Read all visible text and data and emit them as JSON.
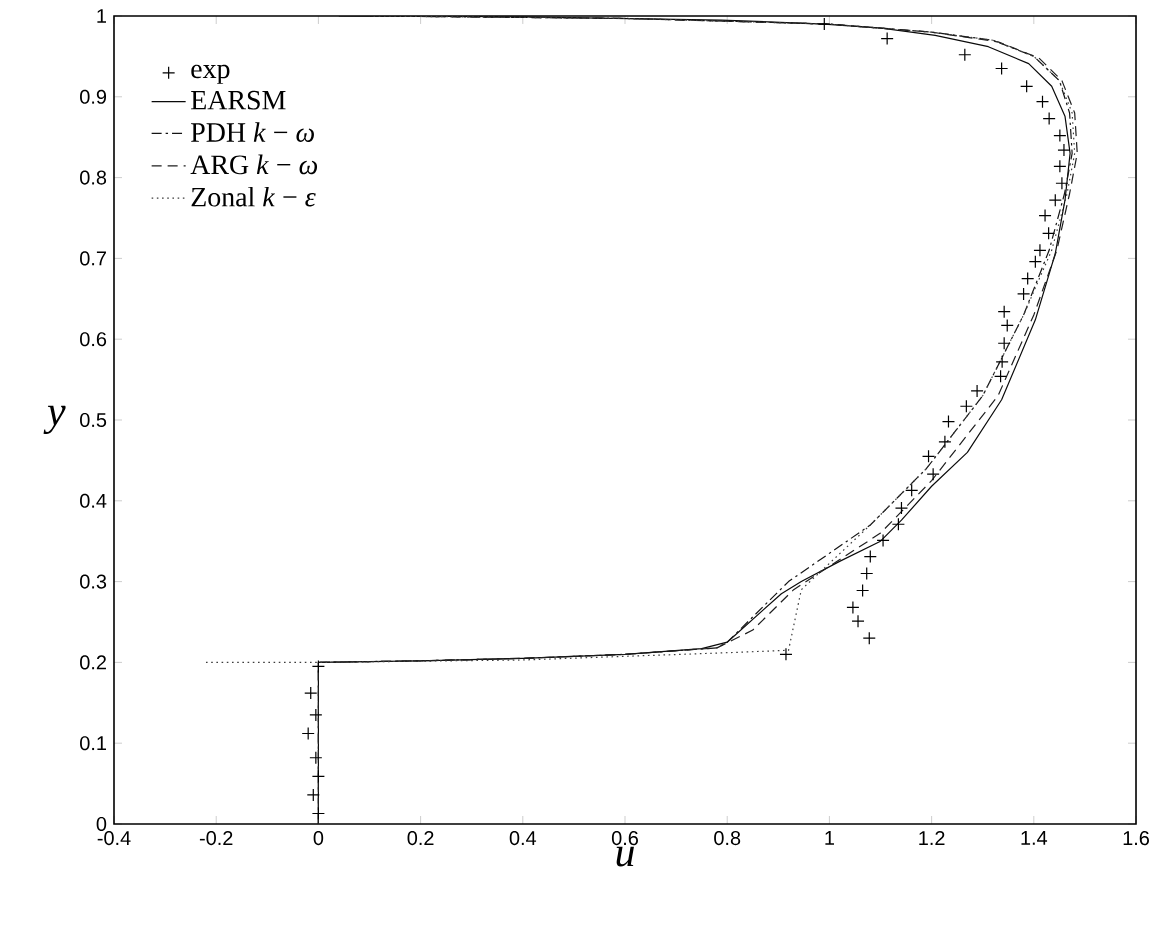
{
  "chart_data": {
    "type": "line",
    "xlabel": "u",
    "ylabel": "y",
    "xlim": [
      -0.4,
      1.6
    ],
    "ylim": [
      0,
      1
    ],
    "xticks": [
      -0.4,
      -0.2,
      0,
      0.2,
      0.4,
      0.6,
      0.8,
      1,
      1.2,
      1.4,
      1.6
    ],
    "yticks": [
      0,
      0.1,
      0.2,
      0.3,
      0.4,
      0.5,
      0.6,
      0.7,
      0.8,
      0.9,
      1
    ],
    "grid": false,
    "legend": "top left",
    "series": [
      {
        "name": "exp",
        "type": "scatter",
        "marker": "cross",
        "color": "#000000",
        "x": [
          0,
          -0.01,
          0,
          -0.005,
          -0.02,
          -0.005,
          -0.015,
          0,
          0.915,
          1.078,
          1.056,
          1.046,
          1.065,
          1.073,
          1.08,
          1.105,
          1.135,
          1.141,
          1.161,
          1.203,
          1.194,
          1.226,
          1.233,
          1.268,
          1.289,
          1.335,
          1.338,
          1.342,
          1.348,
          1.342,
          1.38,
          1.388,
          1.403,
          1.412,
          1.429,
          1.422,
          1.442,
          1.455,
          1.451,
          1.459,
          1.451,
          1.43,
          1.417,
          1.386,
          1.337,
          1.265,
          1.113,
          0.99
        ],
        "values": [
          0.013,
          0.036,
          0.059,
          0.082,
          0.112,
          0.135,
          0.162,
          0.195,
          0.21,
          0.23,
          0.251,
          0.268,
          0.289,
          0.31,
          0.331,
          0.351,
          0.371,
          0.391,
          0.413,
          0.433,
          0.455,
          0.473,
          0.498,
          0.517,
          0.536,
          0.554,
          0.572,
          0.595,
          0.617,
          0.634,
          0.656,
          0.675,
          0.696,
          0.71,
          0.731,
          0.753,
          0.772,
          0.793,
          0.814,
          0.834,
          0.852,
          0.873,
          0.894,
          0.913,
          0.935,
          0.952,
          0.972,
          0.99
        ]
      },
      {
        "name": "EARSM",
        "line_style": "solid",
        "color": "#0a0a0a",
        "x": [
          0,
          0,
          0.2,
          0.4,
          0.6,
          0.75,
          0.8,
          0.906,
          0.945,
          1.02,
          1.1,
          1.141,
          1.2,
          1.27,
          1.337,
          1.403,
          1.442,
          1.461,
          1.471,
          1.461,
          1.435,
          1.39,
          1.311,
          1.207,
          1.102,
          0.99,
          0.788,
          0.4,
          0.04
        ],
        "values": [
          0,
          0.2,
          0.202,
          0.205,
          0.21,
          0.217,
          0.225,
          0.285,
          0.3,
          0.325,
          0.35,
          0.376,
          0.418,
          0.46,
          0.525,
          0.624,
          0.706,
          0.772,
          0.83,
          0.876,
          0.913,
          0.941,
          0.962,
          0.976,
          0.985,
          0.99,
          0.995,
          0.999,
          1
        ]
      },
      {
        "name": "PDH *k* − *ω*",
        "line_style": "dashdot",
        "color": "#141414",
        "x": [
          0,
          0,
          0.2,
          0.4,
          0.6,
          0.78,
          0.8,
          0.92,
          1.08,
          1.19,
          1.3,
          1.38,
          1.43,
          1.46,
          1.475,
          1.47,
          1.45,
          1.4,
          1.32,
          1.2,
          1,
          0.6,
          0.1
        ],
        "values": [
          0,
          0.2,
          0.202,
          0.205,
          0.21,
          0.218,
          0.225,
          0.3,
          0.37,
          0.44,
          0.53,
          0.63,
          0.71,
          0.78,
          0.83,
          0.88,
          0.92,
          0.95,
          0.97,
          0.98,
          0.99,
          0.997,
          1
        ]
      },
      {
        "name": "ARG *k* − *ω*",
        "line_style": "dashed",
        "color": "#1e1e1e",
        "x": [
          0,
          0,
          0.2,
          0.4,
          0.6,
          0.78,
          0.85,
          0.93,
          1.1,
          1.2,
          1.33,
          1.4,
          1.445,
          1.47,
          1.485,
          1.48,
          1.455,
          1.41,
          1.33,
          1.2,
          1,
          0.6,
          0.1
        ],
        "values": [
          0,
          0.2,
          0.202,
          0.205,
          0.21,
          0.218,
          0.24,
          0.29,
          0.36,
          0.425,
          0.53,
          0.63,
          0.71,
          0.78,
          0.83,
          0.88,
          0.92,
          0.948,
          0.968,
          0.98,
          0.99,
          0.997,
          1
        ]
      },
      {
        "name": "Zonal *k* − *ε*",
        "line_style": "dotted",
        "color": "#3c3c3c",
        "x": [
          -0.22,
          0,
          0.4,
          0.8,
          0.92,
          0.945,
          1.08,
          1.19,
          1.3,
          1.38,
          1.435,
          1.465,
          1.48,
          1.475,
          1.45,
          1.4,
          1.32,
          1.2,
          1,
          0.6,
          0.1
        ],
        "values": [
          0.2,
          0.2,
          0.203,
          0.212,
          0.215,
          0.29,
          0.37,
          0.44,
          0.53,
          0.63,
          0.71,
          0.78,
          0.83,
          0.88,
          0.92,
          0.95,
          0.97,
          0.98,
          0.99,
          0.997,
          1
        ]
      }
    ]
  }
}
